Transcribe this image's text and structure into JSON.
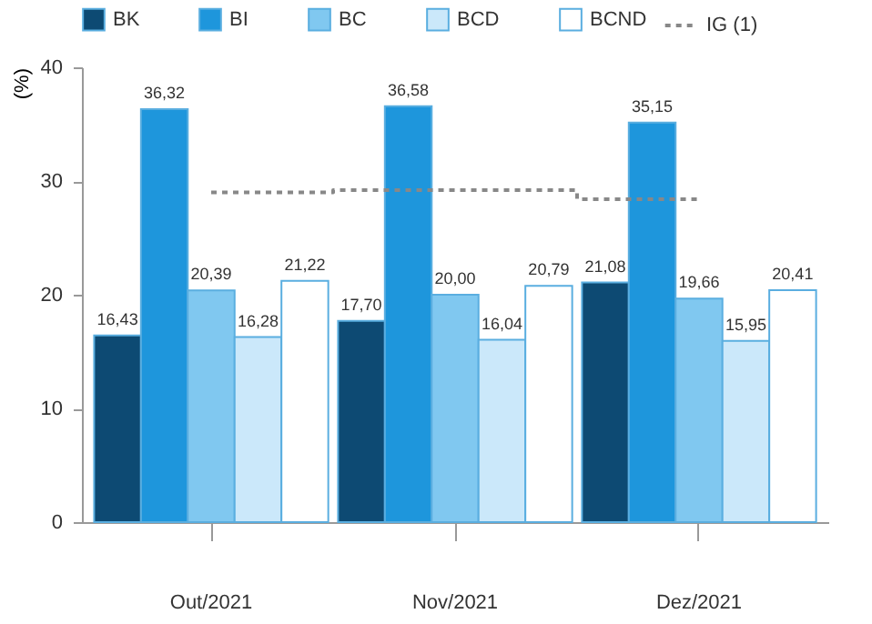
{
  "chart_data": {
    "type": "bar",
    "ylabel": "(%)",
    "categories": [
      "Out/2021",
      "Nov/2021",
      "Dez/2021"
    ],
    "ylim": [
      0,
      40
    ],
    "yticks": [
      0,
      10,
      20,
      30,
      40
    ],
    "legend": "top",
    "series": [
      {
        "name": "BK",
        "color": "#0d4a73",
        "values": [
          16.43,
          17.7,
          21.08
        ],
        "value_labels": [
          "16,43",
          "17,70",
          "21,08"
        ]
      },
      {
        "name": "BI",
        "color": "#1e96dc",
        "values": [
          36.32,
          36.58,
          35.15
        ],
        "value_labels": [
          "36,32",
          "36,58",
          "35,15"
        ]
      },
      {
        "name": "BC",
        "color": "#80c8f0",
        "values": [
          20.39,
          20.0,
          19.66
        ],
        "value_labels": [
          "20,39",
          "20,00",
          "19,66"
        ]
      },
      {
        "name": "BCD",
        "color": "#cbe8fa",
        "values": [
          16.28,
          16.04,
          15.95
        ],
        "value_labels": [
          "16,28",
          "16,04",
          "15,95"
        ]
      },
      {
        "name": "BCND",
        "color": "#ffffff",
        "values": [
          21.22,
          20.79,
          20.41
        ],
        "value_labels": [
          "21,22",
          "20,79",
          "20,41"
        ]
      },
      {
        "name": "IG (1)",
        "type": "step",
        "color": "#888888",
        "line_style": "dotted",
        "values": [
          29.0,
          29.2,
          28.4
        ]
      }
    ]
  }
}
